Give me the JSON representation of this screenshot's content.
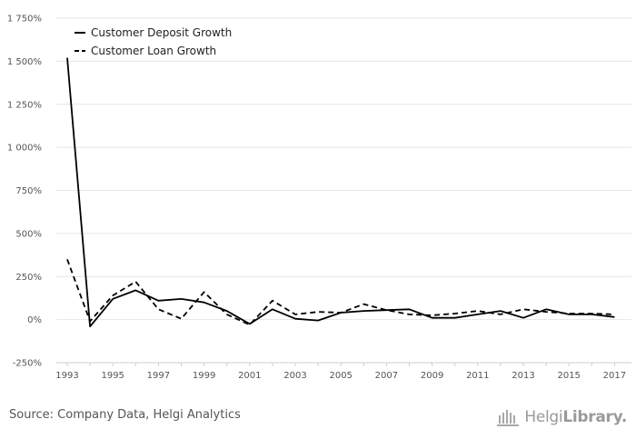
{
  "chart_data": {
    "type": "line",
    "title": "",
    "xlabel": "",
    "ylabel": "",
    "x": [
      1993,
      1994,
      1995,
      1996,
      1997,
      1998,
      1999,
      2000,
      2001,
      2002,
      2003,
      2004,
      2005,
      2006,
      2007,
      2008,
      2009,
      2010,
      2011,
      2012,
      2013,
      2014,
      2015,
      2016,
      2017
    ],
    "x_tick_labels": [
      "1993",
      "1995",
      "1997",
      "1999",
      "2001",
      "2003",
      "2005",
      "2007",
      "2009",
      "2011",
      "2013",
      "2015",
      "2017"
    ],
    "y_ticks": [
      -250,
      0,
      250,
      500,
      750,
      1000,
      1250,
      1500,
      1750
    ],
    "y_tick_labels": [
      "-250%",
      "0%",
      "250%",
      "500%",
      "750%",
      "1 000%",
      "1 250%",
      "1 500%",
      "1 750%"
    ],
    "ylim": [
      -250,
      1750
    ],
    "grid": true,
    "legend_position": "top-left",
    "series": [
      {
        "name": "Customer Deposit Growth",
        "style": "solid",
        "color": "#000000",
        "values": [
          1520,
          -40,
          120,
          170,
          110,
          120,
          100,
          50,
          -25,
          60,
          5,
          -5,
          40,
          50,
          55,
          60,
          10,
          10,
          30,
          50,
          10,
          60,
          30,
          30,
          15
        ]
      },
      {
        "name": "Customer Loan Growth",
        "style": "dashed",
        "color": "#000000",
        "values": [
          350,
          -10,
          140,
          220,
          60,
          5,
          160,
          30,
          -30,
          110,
          30,
          45,
          40,
          90,
          55,
          30,
          25,
          35,
          50,
          30,
          60,
          45,
          35,
          35,
          30
        ]
      }
    ]
  },
  "footer": {
    "source": "Source: Company Data, Helgi Analytics",
    "brand_part1": "Helgi",
    "brand_part2": "Library."
  }
}
